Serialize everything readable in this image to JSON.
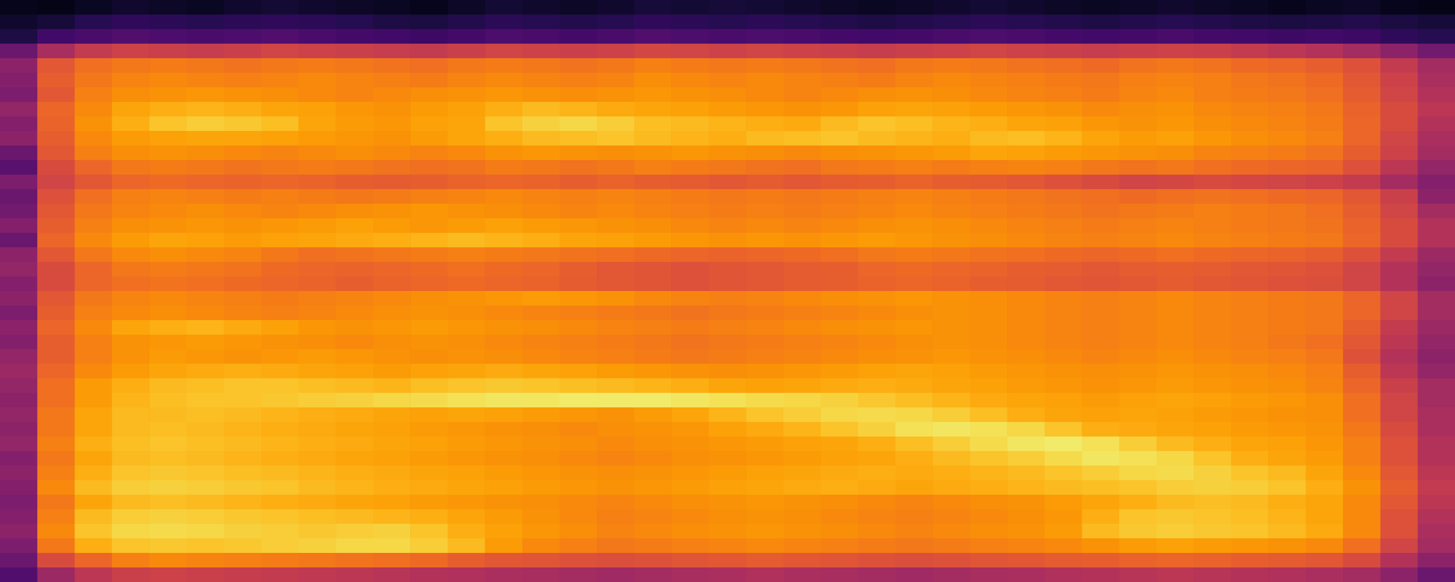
{
  "chart_data": {
    "type": "heatmap",
    "color": "inferno",
    "zlim": [
      0,
      100
    ],
    "tick_labels": false,
    "z": [
      [
        5,
        4,
        6,
        8,
        7,
        6,
        8,
        9,
        8,
        7,
        6,
        5,
        7,
        9,
        8,
        7,
        8,
        10,
        9,
        10,
        9,
        8,
        7,
        6,
        7,
        8,
        9,
        8,
        7,
        6,
        7,
        8,
        7,
        6,
        5,
        6,
        7,
        5,
        4
      ],
      [
        8,
        10,
        14,
        16,
        15,
        14,
        15,
        16,
        15,
        14,
        12,
        11,
        13,
        15,
        14,
        13,
        14,
        16,
        15,
        14,
        15,
        14,
        13,
        12,
        13,
        14,
        15,
        14,
        13,
        12,
        13,
        14,
        13,
        12,
        11,
        12,
        13,
        11,
        10
      ],
      [
        12,
        20,
        22,
        24,
        23,
        22,
        23,
        24,
        22,
        21,
        20,
        19,
        21,
        23,
        22,
        21,
        22,
        24,
        23,
        22,
        23,
        22,
        21,
        20,
        21,
        22,
        23,
        22,
        21,
        20,
        21,
        22,
        21,
        20,
        19,
        20,
        19,
        16,
        14
      ],
      [
        30,
        45,
        52,
        55,
        54,
        53,
        54,
        56,
        55,
        54,
        53,
        52,
        54,
        56,
        55,
        54,
        55,
        57,
        56,
        55,
        56,
        55,
        54,
        53,
        54,
        55,
        56,
        55,
        54,
        53,
        54,
        55,
        54,
        52,
        50,
        48,
        44,
        38,
        32
      ],
      [
        38,
        62,
        68,
        70,
        71,
        70,
        69,
        70,
        71,
        70,
        69,
        68,
        70,
        71,
        70,
        69,
        70,
        72,
        71,
        70,
        71,
        70,
        69,
        68,
        70,
        71,
        70,
        69,
        68,
        67,
        69,
        70,
        69,
        67,
        66,
        64,
        60,
        52,
        44
      ],
      [
        36,
        64,
        70,
        73,
        74,
        73,
        72,
        73,
        74,
        73,
        72,
        71,
        73,
        74,
        73,
        72,
        73,
        75,
        74,
        73,
        74,
        73,
        72,
        71,
        73,
        74,
        73,
        72,
        71,
        70,
        72,
        73,
        72,
        70,
        69,
        67,
        62,
        55,
        46
      ],
      [
        34,
        62,
        72,
        75,
        76,
        77,
        76,
        75,
        74,
        73,
        74,
        75,
        76,
        77,
        76,
        75,
        76,
        77,
        76,
        75,
        74,
        73,
        74,
        75,
        76,
        75,
        74,
        73,
        72,
        71,
        73,
        74,
        72,
        71,
        70,
        68,
        63,
        56,
        48
      ],
      [
        40,
        66,
        74,
        80,
        82,
        83,
        82,
        80,
        79,
        77,
        76,
        78,
        79,
        82,
        84,
        83,
        81,
        80,
        79,
        78,
        77,
        76,
        77,
        79,
        80,
        79,
        78,
        77,
        76,
        74,
        75,
        76,
        74,
        73,
        72,
        70,
        65,
        58,
        50
      ],
      [
        36,
        65,
        76,
        82,
        86,
        88,
        87,
        85,
        80,
        78,
        77,
        79,
        80,
        86,
        89,
        90,
        88,
        85,
        84,
        83,
        82,
        81,
        84,
        86,
        85,
        83,
        82,
        80,
        79,
        77,
        76,
        77,
        75,
        74,
        73,
        71,
        66,
        58,
        48
      ],
      [
        38,
        64,
        74,
        78,
        79,
        80,
        80,
        79,
        78,
        77,
        76,
        78,
        80,
        82,
        84,
        85,
        86,
        84,
        83,
        82,
        84,
        85,
        86,
        84,
        83,
        82,
        84,
        85,
        83,
        80,
        78,
        79,
        77,
        75,
        74,
        72,
        66,
        56,
        46
      ],
      [
        30,
        62,
        72,
        75,
        76,
        75,
        74,
        73,
        74,
        75,
        74,
        73,
        74,
        76,
        77,
        76,
        75,
        76,
        77,
        76,
        75,
        74,
        75,
        76,
        77,
        78,
        80,
        79,
        78,
        77,
        76,
        75,
        73,
        72,
        71,
        69,
        64,
        55,
        44
      ],
      [
        26,
        58,
        66,
        70,
        71,
        70,
        69,
        70,
        71,
        70,
        69,
        68,
        69,
        71,
        70,
        69,
        70,
        72,
        71,
        70,
        69,
        68,
        70,
        71,
        72,
        71,
        72,
        73,
        72,
        70,
        69,
        70,
        68,
        67,
        66,
        65,
        60,
        50,
        40
      ],
      [
        34,
        56,
        62,
        66,
        67,
        66,
        65,
        66,
        65,
        64,
        63,
        64,
        65,
        66,
        65,
        64,
        65,
        64,
        63,
        62,
        63,
        62,
        63,
        64,
        65,
        64,
        63,
        62,
        60,
        58,
        56,
        57,
        58,
        57,
        56,
        55,
        52,
        44,
        36
      ],
      [
        30,
        60,
        68,
        72,
        73,
        72,
        71,
        72,
        71,
        70,
        71,
        72,
        73,
        74,
        73,
        72,
        73,
        72,
        71,
        70,
        71,
        70,
        71,
        72,
        73,
        72,
        71,
        70,
        69,
        68,
        67,
        68,
        69,
        68,
        67,
        66,
        62,
        54,
        38
      ],
      [
        32,
        62,
        70,
        73,
        74,
        75,
        74,
        73,
        74,
        75,
        76,
        77,
        76,
        75,
        74,
        73,
        74,
        73,
        72,
        71,
        72,
        71,
        72,
        73,
        74,
        73,
        72,
        71,
        70,
        69,
        70,
        71,
        72,
        71,
        70,
        68,
        64,
        56,
        44
      ],
      [
        36,
        64,
        72,
        75,
        76,
        77,
        76,
        77,
        78,
        79,
        78,
        77,
        78,
        79,
        78,
        77,
        76,
        75,
        74,
        73,
        74,
        73,
        74,
        75,
        76,
        75,
        74,
        73,
        72,
        71,
        72,
        73,
        72,
        71,
        70,
        69,
        65,
        58,
        48
      ],
      [
        30,
        66,
        74,
        78,
        80,
        79,
        78,
        79,
        80,
        81,
        82,
        83,
        84,
        83,
        82,
        80,
        79,
        78,
        77,
        76,
        77,
        76,
        77,
        78,
        77,
        76,
        75,
        74,
        73,
        72,
        73,
        74,
        73,
        72,
        71,
        70,
        66,
        58,
        48
      ],
      [
        38,
        62,
        70,
        74,
        75,
        74,
        73,
        70,
        68,
        69,
        70,
        71,
        72,
        71,
        70,
        69,
        68,
        67,
        66,
        65,
        66,
        67,
        68,
        70,
        71,
        70,
        69,
        68,
        67,
        66,
        67,
        68,
        67,
        66,
        65,
        64,
        60,
        52,
        42
      ],
      [
        40,
        58,
        66,
        70,
        71,
        70,
        69,
        67,
        66,
        65,
        66,
        67,
        68,
        67,
        66,
        64,
        62,
        61,
        60,
        61,
        62,
        63,
        64,
        66,
        67,
        66,
        65,
        64,
        63,
        62,
        63,
        64,
        63,
        62,
        61,
        60,
        56,
        48,
        40
      ],
      [
        36,
        58,
        66,
        68,
        69,
        68,
        67,
        66,
        65,
        64,
        65,
        66,
        67,
        66,
        65,
        63,
        62,
        61,
        60,
        61,
        62,
        63,
        64,
        65,
        66,
        65,
        64,
        63,
        62,
        61,
        62,
        63,
        62,
        61,
        60,
        59,
        56,
        48,
        38
      ],
      [
        38,
        62,
        70,
        73,
        74,
        73,
        72,
        71,
        72,
        73,
        74,
        75,
        76,
        77,
        78,
        77,
        76,
        74,
        73,
        72,
        73,
        74,
        75,
        76,
        77,
        76,
        75,
        74,
        73,
        72,
        73,
        74,
        73,
        72,
        71,
        70,
        66,
        56,
        44
      ],
      [
        34,
        64,
        72,
        74,
        75,
        74,
        73,
        72,
        73,
        74,
        75,
        76,
        75,
        74,
        73,
        72,
        71,
        70,
        69,
        70,
        71,
        72,
        73,
        74,
        75,
        76,
        75,
        74,
        73,
        72,
        73,
        74,
        73,
        72,
        71,
        70,
        66,
        56,
        44
      ],
      [
        38,
        66,
        74,
        80,
        82,
        83,
        81,
        79,
        77,
        76,
        77,
        78,
        77,
        76,
        75,
        74,
        73,
        72,
        71,
        72,
        73,
        74,
        75,
        76,
        77,
        76,
        75,
        74,
        73,
        72,
        73,
        74,
        73,
        72,
        71,
        70,
        64,
        52,
        42
      ],
      [
        36,
        64,
        72,
        76,
        77,
        78,
        77,
        76,
        75,
        74,
        75,
        76,
        75,
        74,
        73,
        72,
        71,
        70,
        69,
        70,
        71,
        72,
        73,
        74,
        75,
        76,
        75,
        74,
        73,
        72,
        73,
        74,
        73,
        72,
        70,
        68,
        62,
        50,
        40
      ],
      [
        40,
        64,
        72,
        76,
        78,
        77,
        76,
        77,
        78,
        77,
        76,
        75,
        76,
        75,
        74,
        73,
        72,
        71,
        70,
        71,
        72,
        73,
        74,
        75,
        76,
        77,
        76,
        75,
        74,
        73,
        74,
        75,
        74,
        73,
        72,
        70,
        60,
        48,
        38
      ],
      [
        42,
        66,
        74,
        78,
        80,
        81,
        82,
        81,
        80,
        79,
        78,
        79,
        80,
        81,
        80,
        79,
        78,
        77,
        76,
        75,
        76,
        77,
        78,
        79,
        80,
        79,
        78,
        77,
        76,
        75,
        76,
        77,
        76,
        75,
        74,
        72,
        64,
        50,
        40
      ],
      [
        40,
        68,
        78,
        82,
        84,
        85,
        86,
        86,
        85,
        84,
        83,
        85,
        86,
        87,
        86,
        85,
        84,
        83,
        82,
        80,
        79,
        80,
        81,
        82,
        81,
        80,
        79,
        78,
        77,
        76,
        77,
        78,
        77,
        76,
        75,
        73,
        66,
        54,
        44
      ],
      [
        38,
        68,
        78,
        83,
        85,
        86,
        86,
        87,
        88,
        89,
        90,
        91,
        92,
        93,
        93,
        94,
        94,
        94,
        93,
        92,
        91,
        90,
        89,
        87,
        85,
        83,
        81,
        80,
        79,
        78,
        79,
        80,
        79,
        78,
        77,
        75,
        68,
        56,
        44
      ],
      [
        40,
        70,
        80,
        84,
        84,
        85,
        84,
        83,
        82,
        81,
        80,
        79,
        80,
        79,
        78,
        77,
        76,
        78,
        80,
        83,
        86,
        88,
        90,
        91,
        90,
        88,
        85,
        82,
        80,
        79,
        80,
        79,
        78,
        77,
        76,
        75,
        68,
        56,
        46
      ],
      [
        38,
        70,
        80,
        84,
        85,
        84,
        83,
        82,
        81,
        80,
        79,
        78,
        77,
        76,
        75,
        74,
        75,
        76,
        77,
        79,
        81,
        83,
        86,
        89,
        92,
        93,
        92,
        90,
        86,
        82,
        81,
        80,
        79,
        78,
        77,
        76,
        70,
        58,
        46
      ],
      [
        40,
        72,
        82,
        85,
        86,
        85,
        84,
        83,
        82,
        81,
        80,
        79,
        78,
        77,
        76,
        75,
        74,
        75,
        76,
        77,
        78,
        79,
        80,
        82,
        85,
        88,
        91,
        93,
        94,
        92,
        88,
        84,
        82,
        80,
        79,
        77,
        72,
        60,
        48
      ],
      [
        36,
        70,
        80,
        84,
        85,
        84,
        83,
        82,
        81,
        80,
        79,
        78,
        77,
        76,
        75,
        74,
        73,
        74,
        75,
        76,
        77,
        78,
        79,
        80,
        82,
        84,
        86,
        88,
        91,
        93,
        92,
        90,
        86,
        82,
        80,
        78,
        72,
        60,
        48
      ],
      [
        38,
        72,
        82,
        86,
        87,
        86,
        85,
        84,
        83,
        82,
        81,
        80,
        79,
        78,
        77,
        76,
        75,
        76,
        77,
        78,
        79,
        80,
        81,
        82,
        81,
        82,
        83,
        84,
        86,
        88,
        90,
        91,
        89,
        86,
        84,
        80,
        74,
        62,
        50
      ],
      [
        36,
        74,
        84,
        88,
        89,
        88,
        87,
        86,
        84,
        83,
        82,
        81,
        80,
        79,
        78,
        77,
        76,
        77,
        78,
        79,
        80,
        81,
        82,
        81,
        80,
        81,
        82,
        83,
        84,
        85,
        86,
        88,
        89,
        88,
        86,
        82,
        76,
        64,
        52
      ],
      [
        34,
        70,
        80,
        84,
        85,
        84,
        83,
        82,
        81,
        80,
        79,
        78,
        77,
        76,
        75,
        74,
        73,
        74,
        75,
        76,
        77,
        76,
        75,
        74,
        73,
        74,
        75,
        76,
        78,
        80,
        82,
        84,
        85,
        84,
        82,
        80,
        74,
        62,
        50
      ],
      [
        36,
        72,
        84,
        88,
        89,
        88,
        87,
        86,
        85,
        84,
        83,
        82,
        80,
        78,
        76,
        74,
        72,
        73,
        74,
        75,
        76,
        75,
        74,
        73,
        72,
        73,
        74,
        75,
        77,
        82,
        86,
        87,
        86,
        85,
        83,
        80,
        74,
        60,
        48
      ],
      [
        38,
        74,
        86,
        90,
        91,
        90,
        89,
        88,
        87,
        88,
        89,
        86,
        82,
        79,
        77,
        75,
        73,
        74,
        75,
        76,
        77,
        76,
        75,
        74,
        73,
        74,
        75,
        76,
        78,
        84,
        87,
        88,
        87,
        86,
        84,
        81,
        74,
        60,
        46
      ],
      [
        34,
        70,
        82,
        86,
        87,
        86,
        87,
        88,
        89,
        90,
        90,
        88,
        84,
        78,
        74,
        72,
        70,
        71,
        72,
        73,
        74,
        73,
        72,
        71,
        70,
        71,
        72,
        73,
        74,
        76,
        78,
        79,
        78,
        77,
        76,
        74,
        68,
        56,
        44
      ],
      [
        30,
        58,
        66,
        72,
        74,
        73,
        72,
        71,
        70,
        69,
        68,
        67,
        64,
        62,
        61,
        60,
        59,
        60,
        61,
        62,
        63,
        62,
        61,
        60,
        59,
        60,
        61,
        62,
        63,
        64,
        65,
        66,
        65,
        64,
        63,
        62,
        58,
        48,
        38
      ],
      [
        24,
        42,
        50,
        54,
        55,
        54,
        53,
        52,
        51,
        50,
        49,
        48,
        47,
        46,
        45,
        44,
        43,
        44,
        45,
        46,
        47,
        46,
        45,
        44,
        43,
        44,
        45,
        46,
        47,
        48,
        49,
        50,
        49,
        48,
        47,
        46,
        44,
        38,
        30
      ]
    ]
  }
}
